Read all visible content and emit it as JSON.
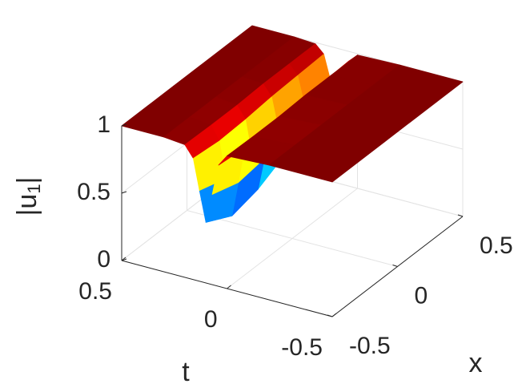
{
  "chart_data": {
    "type": "surface",
    "colormap": "jet",
    "grid": true,
    "x": [
      -0.5,
      -0.3,
      -0.1,
      0.1,
      0.3,
      0.5
    ],
    "t": [
      -0.5,
      -0.2,
      0,
      0.04,
      0.07,
      0.1,
      0.13,
      0.16,
      0.2,
      0.3,
      0.5
    ],
    "z": [
      [
        1,
        1,
        0.985,
        0.9,
        0.67,
        0.45,
        0.67,
        0.9,
        0.985,
        1,
        1
      ],
      [
        1,
        1,
        0.98,
        0.88,
        0.61,
        0.35,
        0.61,
        0.88,
        0.98,
        1,
        1
      ],
      [
        1,
        1,
        0.98,
        0.89,
        0.64,
        0.4,
        0.64,
        0.89,
        0.98,
        1,
        1
      ],
      [
        1,
        1,
        0.99,
        0.91,
        0.7,
        0.5,
        0.7,
        0.91,
        0.99,
        1,
        1
      ],
      [
        1,
        1,
        0.99,
        0.92,
        0.73,
        0.55,
        0.73,
        0.92,
        0.99,
        1,
        1
      ],
      [
        1,
        1,
        0.99,
        0.93,
        0.76,
        0.6,
        0.76,
        0.93,
        0.99,
        1,
        1
      ]
    ],
    "xlim": [
      -0.5,
      0.5
    ],
    "tlim": [
      -0.5,
      0.5
    ],
    "zlim": [
      0,
      1
    ],
    "xticks": [
      -0.5,
      0,
      0.5
    ],
    "tticks": [
      -0.5,
      0,
      0.5
    ],
    "zticks": [
      0,
      0.5,
      1
    ],
    "xlabel": "x",
    "tlabel": "t",
    "zlabel": [
      "|u",
      "1",
      "|"
    ]
  }
}
